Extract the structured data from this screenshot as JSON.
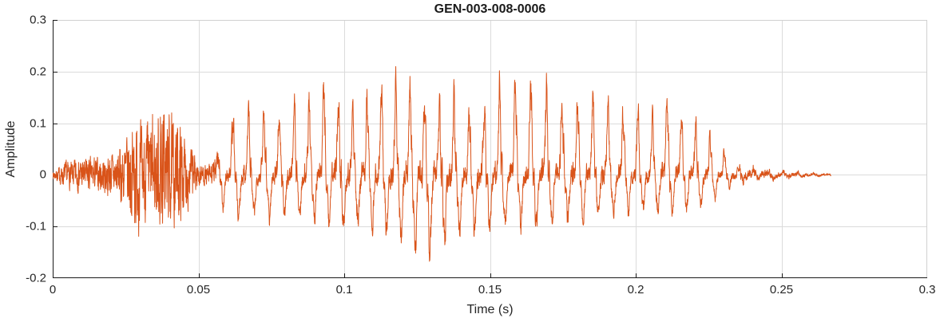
{
  "chart_data": {
    "type": "line",
    "title": "GEN-003-008-0006",
    "xlabel": "Time (s)",
    "ylabel": "Amplitude",
    "xlim": [
      0,
      0.3
    ],
    "ylim": [
      -0.2,
      0.3
    ],
    "grid": true,
    "legend": null,
    "xticks": {
      "values": [
        0,
        0.05,
        0.1,
        0.15,
        0.2,
        0.25,
        0.3
      ],
      "labels": [
        "0",
        "0.05",
        "0.1",
        "0.15",
        "0.2",
        "0.25",
        "0.3"
      ]
    },
    "yticks": {
      "values": [
        -0.2,
        -0.1,
        0,
        0.1,
        0.2,
        0.3
      ],
      "labels": [
        "-0.2",
        "-0.1",
        "0",
        "0.1",
        "0.2",
        "0.3"
      ]
    },
    "colors": {
      "line": "#D95319",
      "grid": "#DBDBDB",
      "axis": "#1A1A1A",
      "box": "#D0D0D0",
      "text": "#262626",
      "background": "#FFFFFF"
    },
    "signal": {
      "description": "speech-like waveform: soft onset, noisy fricative burst near 0.02-0.05 s, strong periodic voiced segment 0.055-0.23 s peaking 0.215 near t=0.116 and dipping -0.18 near t=0.128, decaying tail ending near 0.267 s",
      "duration": 0.267,
      "sample_rate": 16000,
      "f0_hz": 195,
      "noise_seed": 7,
      "envelope": {
        "t": [
          0.0,
          0.004,
          0.01,
          0.016,
          0.02,
          0.024,
          0.028,
          0.031,
          0.034,
          0.037,
          0.04,
          0.044,
          0.048,
          0.051,
          0.054,
          0.058,
          0.062,
          0.068,
          0.075,
          0.082,
          0.09,
          0.096,
          0.103,
          0.11,
          0.116,
          0.122,
          0.128,
          0.134,
          0.14,
          0.148,
          0.155,
          0.162,
          0.17,
          0.178,
          0.186,
          0.194,
          0.202,
          0.21,
          0.217,
          0.223,
          0.228,
          0.233,
          0.238,
          0.244,
          0.25,
          0.258,
          0.267
        ],
        "pos": [
          0.008,
          0.025,
          0.035,
          0.035,
          0.045,
          0.06,
          0.115,
          0.09,
          0.11,
          0.16,
          0.12,
          0.1,
          0.05,
          0.02,
          0.03,
          0.09,
          0.13,
          0.12,
          0.14,
          0.13,
          0.19,
          0.19,
          0.16,
          0.17,
          0.215,
          0.2,
          0.17,
          0.16,
          0.17,
          0.16,
          0.2,
          0.2,
          0.19,
          0.17,
          0.16,
          0.14,
          0.13,
          0.15,
          0.13,
          0.11,
          0.07,
          0.03,
          0.025,
          0.02,
          0.012,
          0.008,
          0.004
        ],
        "neg": [
          -0.008,
          -0.025,
          -0.035,
          -0.035,
          -0.045,
          -0.06,
          -0.12,
          -0.09,
          -0.1,
          -0.11,
          -0.1,
          -0.09,
          -0.05,
          -0.02,
          -0.03,
          -0.07,
          -0.1,
          -0.09,
          -0.1,
          -0.09,
          -0.1,
          -0.11,
          -0.12,
          -0.12,
          -0.13,
          -0.17,
          -0.18,
          -0.16,
          -0.13,
          -0.12,
          -0.11,
          -0.12,
          -0.11,
          -0.1,
          -0.1,
          -0.09,
          -0.08,
          -0.09,
          -0.08,
          -0.07,
          -0.05,
          -0.025,
          -0.02,
          -0.015,
          -0.01,
          -0.006,
          -0.003
        ]
      },
      "noise_mix": {
        "t": [
          0,
          0.018,
          0.05,
          0.054,
          0.058,
          0.23,
          0.236,
          0.267
        ],
        "v": [
          0.95,
          1.0,
          1.0,
          0.8,
          0.18,
          0.18,
          0.45,
          0.55
        ]
      }
    }
  }
}
